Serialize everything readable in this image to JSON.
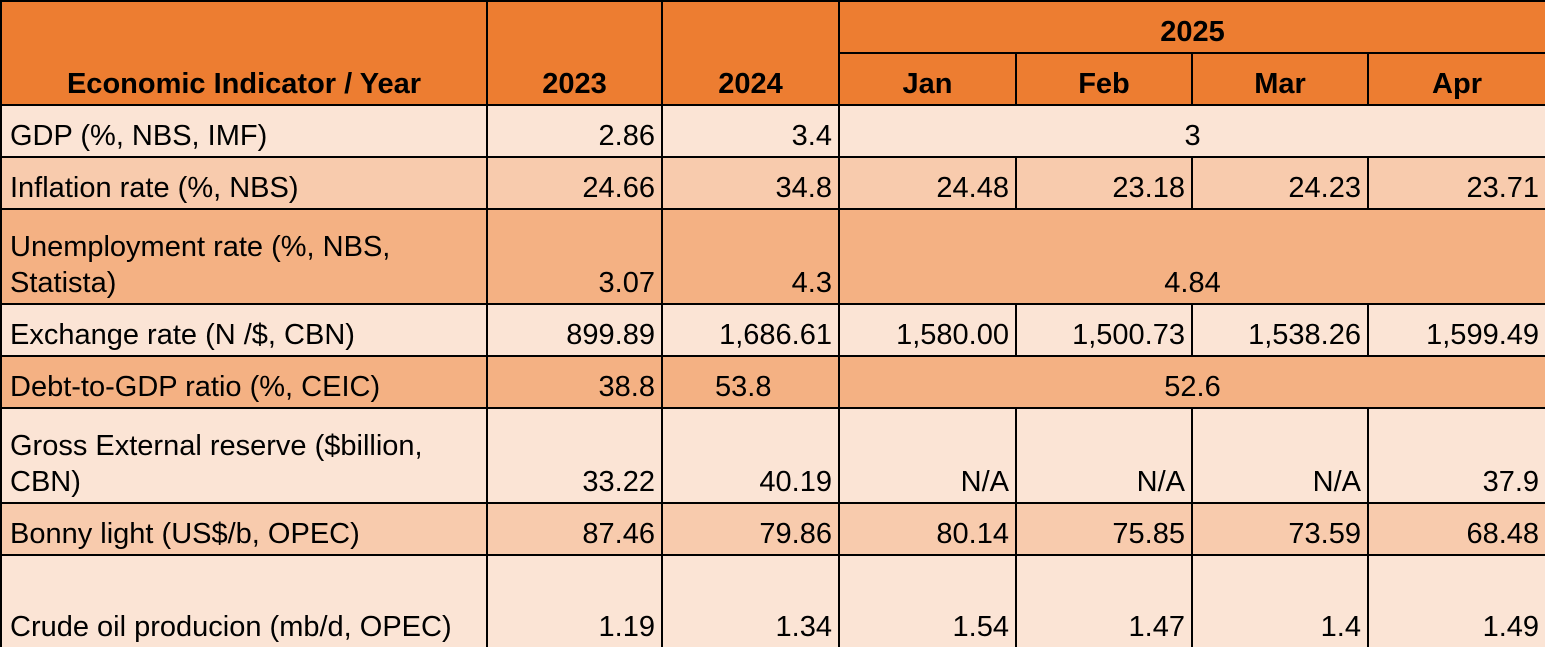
{
  "header": {
    "indicator_label": "Economic Indicator / Year",
    "year_2023": "2023",
    "year_2024": "2024",
    "year_2025": "2025",
    "months": [
      "Jan",
      "Feb",
      "Mar",
      "Apr"
    ]
  },
  "rows": [
    {
      "label": "GDP (%, NBS, IMF)",
      "y2023": "2.86",
      "y2024": "3.4",
      "y2025_merged": "3"
    },
    {
      "label": "Inflation rate (%, NBS)",
      "y2023": "24.66",
      "y2024": "34.8",
      "months": [
        "24.48",
        "23.18",
        "24.23",
        "23.71"
      ]
    },
    {
      "label": "Unemployment rate (%, NBS, Statista)",
      "y2023": "3.07",
      "y2024": "4.3",
      "y2025_merged": "4.84"
    },
    {
      "label": "Exchange rate (N /$, CBN)",
      "y2023": "899.89",
      "y2024": "1,686.61",
      "months": [
        "1,580.00",
        "1,500.73",
        "1,538.26",
        "1,599.49"
      ]
    },
    {
      "label": "Debt-to-GDP ratio (%, CEIC)",
      "y2023": "38.8",
      "y2024": "53.8",
      "y2025_merged": "52.6"
    },
    {
      "label": "Gross External reserve ($billion, CBN)",
      "y2023": "33.22",
      "y2024": "40.19",
      "months": [
        "N/A",
        "N/A",
        "N/A",
        "37.9"
      ]
    },
    {
      "label": "Bonny light (US$/b, OPEC)",
      "y2023": "87.46",
      "y2024": "79.86",
      "months": [
        "80.14",
        "75.85",
        "73.59",
        "68.48"
      ]
    },
    {
      "label": "Crude oil producion (mb/d, OPEC)",
      "y2023": "1.19",
      "y2024": "1.34",
      "months": [
        "1.54",
        "1.47",
        "1.4",
        "1.49"
      ]
    }
  ],
  "colors": {
    "header": "#ED7D31",
    "row_light": "#FBE4D5",
    "row_mid": "#F8CBAD",
    "row_dark": "#F4B183",
    "border": "#000000"
  }
}
